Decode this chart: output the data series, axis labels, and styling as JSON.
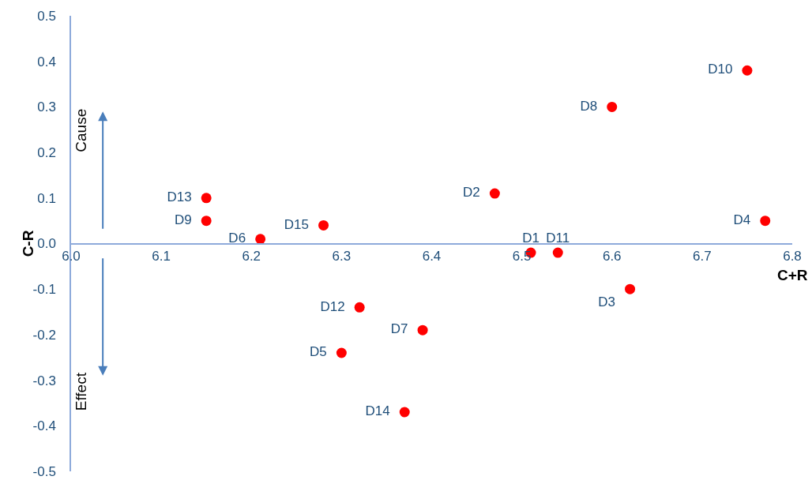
{
  "chart_data": {
    "type": "scatter",
    "xlabel": "C+R",
    "ylabel": "C-R",
    "value_labels": [
      "D1",
      "D2",
      "D3",
      "D4",
      "D5",
      "D6",
      "D7",
      "D8",
      "D9",
      "D10",
      "D11",
      "D12",
      "D13",
      "D14",
      "D15"
    ],
    "x": [
      6.51,
      6.47,
      6.62,
      6.77,
      6.3,
      6.21,
      6.39,
      6.6,
      6.15,
      6.75,
      6.54,
      6.32,
      6.15,
      6.37,
      6.28
    ],
    "values": [
      -0.02,
      0.11,
      -0.1,
      0.05,
      -0.24,
      0.01,
      -0.19,
      0.3,
      0.05,
      0.38,
      -0.02,
      -0.14,
      0.1,
      -0.37,
      0.04
    ],
    "color": "#ff0000",
    "marker": "circle",
    "grid": false,
    "xlim": [
      6.0,
      6.8
    ],
    "xticks": [
      {
        "value": 6.0,
        "label": "6.0"
      },
      6.1,
      6.2,
      6.3,
      6.4,
      6.5,
      6.6,
      6.7,
      {
        "value": 6.8,
        "label": "6.8"
      }
    ],
    "ylim": [
      -0.5,
      0.5
    ],
    "yticks": [
      -0.5,
      -0.4,
      -0.3,
      -0.2,
      -0.1,
      {
        "value": 0,
        "label": "0.0"
      },
      0.1,
      0.2,
      0.3,
      0.4,
      0.5
    ],
    "annotations": [
      "Cause",
      "Effect"
    ]
  }
}
